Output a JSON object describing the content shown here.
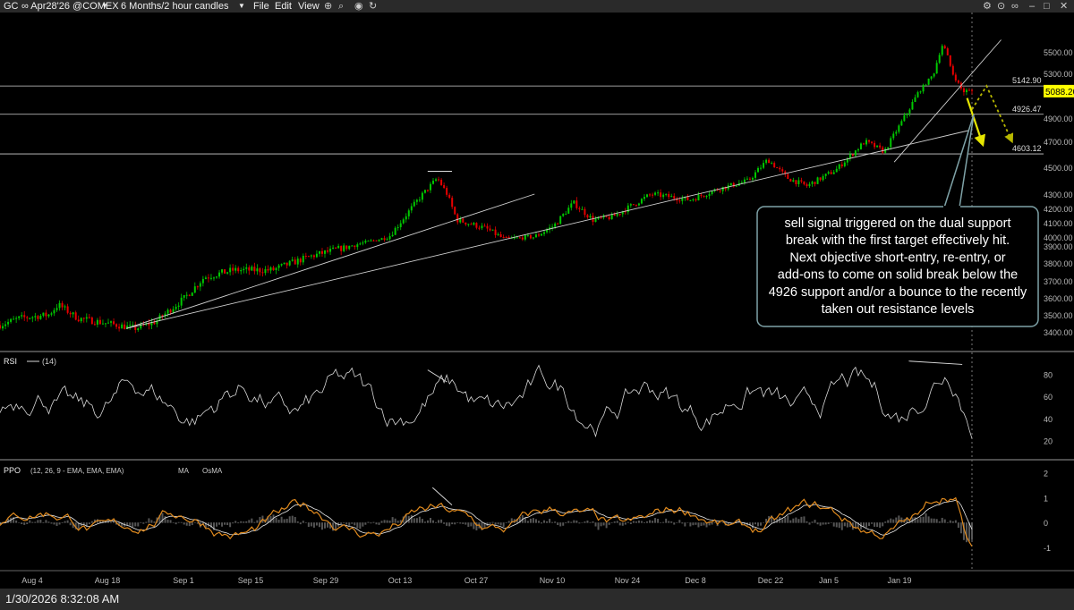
{
  "header": {
    "symbol": "GC",
    "contract": "∞ Apr28'26 @COMEX",
    "timeframe": "6 Months/2 hour candles",
    "menus": [
      "File",
      "Edit",
      "View"
    ]
  },
  "status": {
    "timestamp": "1/30/2026 8:32:08 AM"
  },
  "colors": {
    "up": "#00c800",
    "down": "#e60000",
    "price_tag": "#ffff00",
    "callout_bg": "#000000",
    "callout_border": "#7fa3a8",
    "rsi_line": "#d8d8d8",
    "ppo_line": "#e08a1e",
    "ma_line": "#e8e8e8",
    "osma_fill": "#555555",
    "arrow": "#e6e600",
    "arrow_dotted": "#b8b800"
  },
  "icons": [
    "infinity-icon",
    "back-icon",
    "forward-icon",
    "zoom-icon",
    "settings-icon",
    "minimize-icon",
    "maximize-icon",
    "close-icon"
  ],
  "chart_data": [
    {
      "type": "line",
      "price_axis": {
        "range": [
          3300,
          5700
        ],
        "ticks": [
          "5500.00",
          "5300.00",
          "4900.00",
          "4700.00",
          "4500.00",
          "4300.00",
          "4200.00",
          "4100.00",
          "4000.00",
          "3900.00",
          "3800.00",
          "3700.00",
          "3600.00",
          "3500.00",
          "3400.00"
        ]
      },
      "x_ticks": [
        "Aug 4",
        "Aug 18",
        "Sep 1",
        "Sep 15",
        "Sep 29",
        "Oct 13",
        "Oct 27",
        "Nov 10",
        "Nov 24",
        "Dec 8",
        "Dec 22",
        "Jan 5",
        "Jan 19"
      ],
      "price_path": [
        [
          0,
          3440
        ],
        [
          0.02,
          3480
        ],
        [
          0.05,
          3500
        ],
        [
          0.06,
          3560
        ],
        [
          0.08,
          3480
        ],
        [
          0.12,
          3440
        ],
        [
          0.14,
          3420
        ],
        [
          0.16,
          3460
        ],
        [
          0.19,
          3600
        ],
        [
          0.21,
          3720
        ],
        [
          0.24,
          3760
        ],
        [
          0.28,
          3760
        ],
        [
          0.32,
          3840
        ],
        [
          0.36,
          3900
        ],
        [
          0.4,
          4000
        ],
        [
          0.43,
          4260
        ],
        [
          0.45,
          4420
        ],
        [
          0.46,
          4300
        ],
        [
          0.47,
          4120
        ],
        [
          0.5,
          4060
        ],
        [
          0.52,
          3980
        ],
        [
          0.55,
          4000
        ],
        [
          0.57,
          4080
        ],
        [
          0.59,
          4240
        ],
        [
          0.61,
          4120
        ],
        [
          0.63,
          4140
        ],
        [
          0.67,
          4300
        ],
        [
          0.71,
          4260
        ],
        [
          0.74,
          4340
        ],
        [
          0.77,
          4400
        ],
        [
          0.79,
          4560
        ],
        [
          0.81,
          4420
        ],
        [
          0.83,
          4360
        ],
        [
          0.86,
          4480
        ],
        [
          0.89,
          4700
        ],
        [
          0.91,
          4620
        ],
        [
          0.93,
          4900
        ],
        [
          0.95,
          5140
        ],
        [
          0.96,
          5280
        ],
        [
          0.97,
          5600
        ],
        [
          0.98,
          5300
        ],
        [
          0.99,
          5088
        ]
      ],
      "horizontal_levels": [
        {
          "label": "5142.90",
          "value": 5142.9
        },
        {
          "label": "4926.47",
          "value": 4926.47
        },
        {
          "label": "4603.12",
          "value": 4603.12
        }
      ],
      "last_price_tag": "5088.20",
      "annotation": "sell signal triggered on the dual support break with the first target effectively hit. Next objective short-entry, re-entry, or add-ons to come on solid break below the 4926 support and/or a bounce to the recently taken out resistance levels"
    },
    {
      "type": "line",
      "name": "RSI",
      "params": "(14)",
      "ticks": [
        "80",
        "60",
        "40",
        "20"
      ],
      "range": [
        10,
        95
      ]
    },
    {
      "type": "line",
      "name": "PPO",
      "params": "(12, 26, 9 - EMA, EMA, EMA)",
      "legend": [
        "MA",
        "OsMA"
      ],
      "ticks": [
        "2",
        "1",
        "0",
        "-1"
      ],
      "range": [
        -1.5,
        2.3
      ]
    }
  ]
}
